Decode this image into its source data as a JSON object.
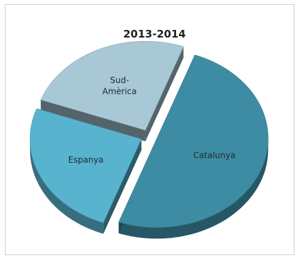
{
  "chart_data": {
    "type": "pie",
    "title": "2013-2014",
    "three_d": true,
    "exploded": true,
    "legend": "none",
    "categories": [
      "Catalunya",
      "Espanya",
      "Sud-Amèrica"
    ],
    "values": [
      50,
      25,
      25
    ],
    "label_lines": [
      [
        "Catalunya"
      ],
      [
        "Espanya"
      ],
      [
        "Sud-",
        "Amèrica"
      ]
    ],
    "colors": [
      "#3d8ca3",
      "#58b3cf",
      "#a8c8d6"
    ]
  }
}
